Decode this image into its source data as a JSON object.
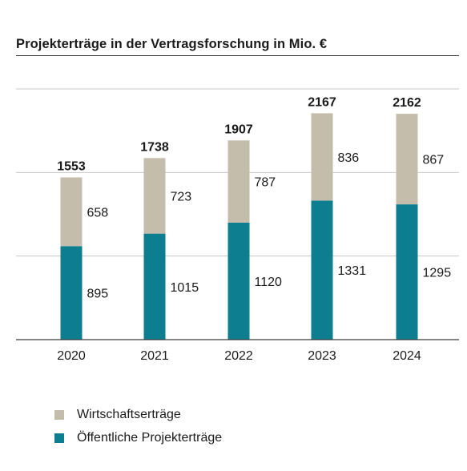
{
  "chart_data": {
    "type": "bar",
    "stacked": true,
    "title": "Projekterträge in der Vertragsforschung in Mio. €",
    "categories": [
      "2020",
      "2021",
      "2022",
      "2023",
      "2024"
    ],
    "series": [
      {
        "name": "Öffentliche Projekterträge",
        "values": [
          895,
          1015,
          1120,
          1331,
          1295
        ],
        "color": "#0d7e90"
      },
      {
        "name": "Wirtschaftserträge",
        "values": [
          658,
          723,
          787,
          836,
          867
        ],
        "color": "#c5bdac"
      }
    ],
    "totals": [
      1553,
      1738,
      1907,
      2167,
      2162
    ],
    "ylim": [
      0,
      2400
    ],
    "grid": true,
    "legend_position": "bottom-left"
  },
  "legend": [
    {
      "label": "Wirtschaftserträge",
      "color": "#c5bdac",
      "icon": "square-swatch"
    },
    {
      "label": "Öffentliche Projekterträge",
      "color": "#0d7e90",
      "icon": "square-swatch"
    }
  ]
}
